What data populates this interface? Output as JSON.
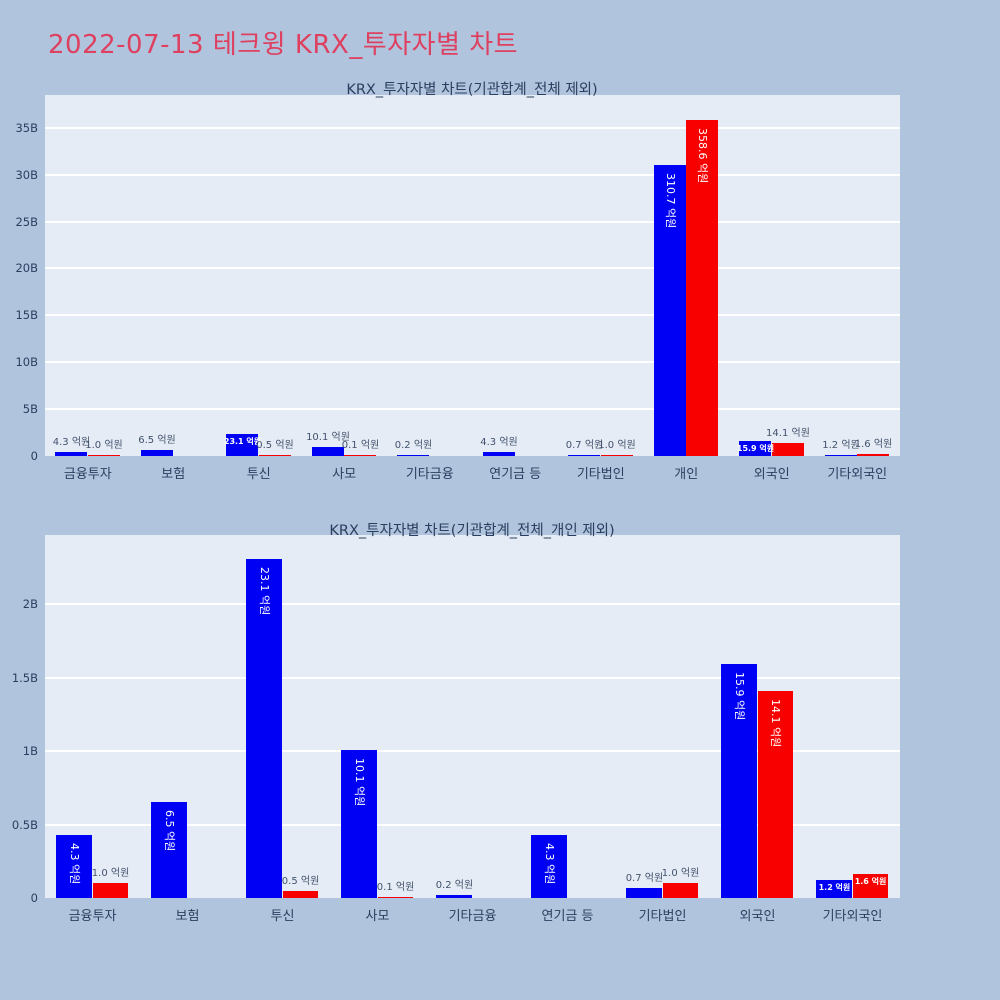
{
  "page": {
    "title": "2022-07-13 테크윙 KRX_투자자별 차트",
    "title_color": "#de4060",
    "background": "#b0c4de",
    "plot_background": "#e5ecf6",
    "grid_color": "#ffffff",
    "axis_text_color": "#2a3f5f",
    "outside_label_color": "#42526c"
  },
  "chart_data": [
    {
      "type": "bar",
      "title": "KRX_투자자별 차트(기관합계_전체 제외)",
      "unit": "억원",
      "categories": [
        "금융투자",
        "보험",
        "투신",
        "사모",
        "기타금융",
        "연기금 등",
        "기타법인",
        "개인",
        "외국인",
        "기타외국인"
      ],
      "series": [
        {
          "id": "blue",
          "color": "#0000f4",
          "values": [
            4.3,
            6.5,
            23.1,
            10.1,
            0.2,
            4.3,
            0.7,
            310.7,
            15.9,
            1.2
          ],
          "label_placement": [
            "out",
            "out",
            "in-h",
            "out",
            "out",
            "out",
            "out",
            "in-v",
            "in-h",
            "out"
          ]
        },
        {
          "id": "red",
          "color": "#f80000",
          "values": [
            1.0,
            null,
            0.5,
            0.1,
            null,
            null,
            1.0,
            358.6,
            14.1,
            1.6
          ],
          "label_placement": [
            "out",
            null,
            "out",
            "out",
            null,
            null,
            "out",
            "in-v",
            "out",
            "out"
          ]
        }
      ],
      "yticks": [
        {
          "label": "0",
          "value_b": 0
        },
        {
          "label": "5B",
          "value_b": 5
        },
        {
          "label": "10B",
          "value_b": 10
        },
        {
          "label": "15B",
          "value_b": 15
        },
        {
          "label": "20B",
          "value_b": 20
        },
        {
          "label": "25B",
          "value_b": 25
        },
        {
          "label": "30B",
          "value_b": 30
        },
        {
          "label": "35B",
          "value_b": 35
        }
      ],
      "ylim_b": [
        0,
        38.5
      ],
      "grid": true,
      "legend": "none",
      "note_units": "values are in 억원 (0.1B won); y axis in billions (B)"
    },
    {
      "type": "bar",
      "title": "KRX_투자자별 차트(기관합계_전체_개인 제외)",
      "unit": "억원",
      "categories": [
        "금융투자",
        "보험",
        "투신",
        "사모",
        "기타금융",
        "연기금 등",
        "기타법인",
        "외국인",
        "기타외국인"
      ],
      "series": [
        {
          "id": "blue",
          "color": "#0000f4",
          "values": [
            4.3,
            6.5,
            23.1,
            10.1,
            0.2,
            4.3,
            0.7,
            15.9,
            1.2
          ],
          "label_placement": [
            "in-v",
            "in-v",
            "in-v",
            "in-v",
            "out",
            "in-v",
            "out",
            "in-v",
            "in-h"
          ]
        },
        {
          "id": "red",
          "color": "#f80000",
          "values": [
            1.0,
            null,
            0.5,
            0.1,
            null,
            null,
            1.0,
            14.1,
            1.6
          ],
          "label_placement": [
            "out",
            null,
            "out",
            "out",
            null,
            null,
            "out",
            "in-v",
            "in-h"
          ]
        }
      ],
      "yticks": [
        {
          "label": "0",
          "value_b": 0
        },
        {
          "label": "0.5B",
          "value_b": 0.5
        },
        {
          "label": "1B",
          "value_b": 1
        },
        {
          "label": "1.5B",
          "value_b": 1.5
        },
        {
          "label": "2B",
          "value_b": 2
        }
      ],
      "ylim_b": [
        0,
        2.47
      ],
      "grid": true,
      "legend": "none",
      "note_units": "values are in 억원 (0.1B won); y axis in billions (B)"
    }
  ]
}
